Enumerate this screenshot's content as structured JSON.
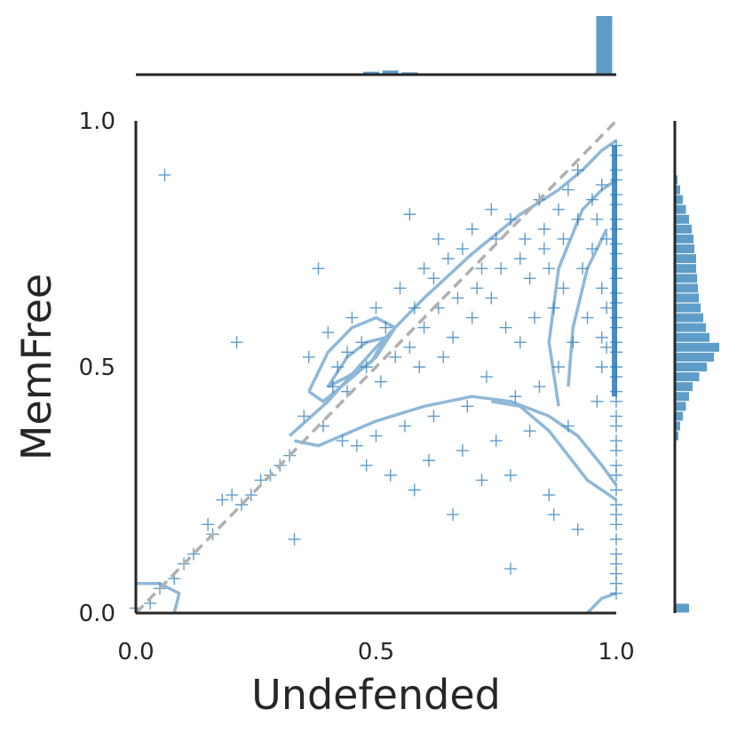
{
  "chart_data": {
    "type": "scatter",
    "subtype": "joint plot with marginal histograms and KDE contours",
    "title": "",
    "xlabel": "Undefended",
    "ylabel": "MemFree",
    "xlim": [
      0.0,
      1.0
    ],
    "ylim": [
      0.0,
      1.0
    ],
    "xticks": [
      0.0,
      0.5,
      1.0
    ],
    "xtick_labels": [
      "0.0",
      "0.5",
      "1.0"
    ],
    "yticks": [
      0.0,
      0.5,
      1.0
    ],
    "ytick_labels": [
      "0.0",
      "0.5",
      "1.0"
    ],
    "grid": false,
    "marker": "+",
    "color": "#2b7bba",
    "reference_line": {
      "style": "dashed",
      "color": "#b0b0b0",
      "from": [
        0,
        0
      ],
      "to": [
        1,
        1
      ]
    },
    "series": [
      {
        "name": "",
        "points": [
          [
            0.06,
            0.89
          ],
          [
            0.21,
            0.55
          ],
          [
            0.38,
            0.7
          ],
          [
            0.57,
            0.81
          ],
          [
            0.33,
            0.15
          ],
          [
            0.5,
            0.62
          ],
          [
            0.55,
            0.66
          ],
          [
            0.62,
            0.68
          ],
          [
            0.45,
            0.6
          ],
          [
            0.4,
            0.57
          ],
          [
            0.36,
            0.52
          ],
          [
            0.42,
            0.5
          ],
          [
            0.44,
            0.53
          ],
          [
            0.47,
            0.55
          ],
          [
            0.48,
            0.5
          ],
          [
            0.52,
            0.58
          ],
          [
            0.58,
            0.62
          ],
          [
            0.6,
            0.58
          ],
          [
            0.65,
            0.72
          ],
          [
            0.68,
            0.74
          ],
          [
            0.72,
            0.7
          ],
          [
            0.75,
            0.76
          ],
          [
            0.78,
            0.8
          ],
          [
            0.8,
            0.72
          ],
          [
            0.82,
            0.68
          ],
          [
            0.85,
            0.78
          ],
          [
            0.88,
            0.82
          ],
          [
            0.9,
            0.86
          ],
          [
            0.92,
            0.9
          ],
          [
            0.86,
            0.7
          ],
          [
            0.7,
            0.6
          ],
          [
            0.66,
            0.56
          ],
          [
            0.64,
            0.52
          ],
          [
            0.74,
            0.64
          ],
          [
            0.77,
            0.58
          ],
          [
            0.8,
            0.55
          ],
          [
            0.83,
            0.6
          ],
          [
            0.87,
            0.62
          ],
          [
            0.89,
            0.66
          ],
          [
            0.93,
            0.7
          ],
          [
            0.95,
            0.74
          ],
          [
            0.96,
            0.8
          ],
          [
            0.94,
            0.6
          ],
          [
            0.91,
            0.55
          ],
          [
            0.88,
            0.5
          ],
          [
            0.84,
            0.46
          ],
          [
            0.79,
            0.44
          ],
          [
            0.73,
            0.48
          ],
          [
            0.69,
            0.42
          ],
          [
            0.62,
            0.4
          ],
          [
            0.56,
            0.38
          ],
          [
            0.5,
            0.36
          ],
          [
            0.46,
            0.34
          ],
          [
            0.43,
            0.35
          ],
          [
            0.39,
            0.38
          ],
          [
            0.35,
            0.4
          ],
          [
            0.32,
            0.32
          ],
          [
            0.3,
            0.3
          ],
          [
            0.28,
            0.28
          ],
          [
            0.26,
            0.27
          ],
          [
            0.24,
            0.24
          ],
          [
            0.22,
            0.22
          ],
          [
            0.2,
            0.24
          ],
          [
            0.18,
            0.23
          ],
          [
            0.16,
            0.16
          ],
          [
            0.15,
            0.18
          ],
          [
            0.12,
            0.12
          ],
          [
            0.1,
            0.1
          ],
          [
            0.08,
            0.07
          ],
          [
            0.05,
            0.05
          ],
          [
            0.03,
            0.02
          ],
          [
            0.0,
            0.01
          ],
          [
            0.48,
            0.3
          ],
          [
            0.53,
            0.28
          ],
          [
            0.58,
            0.25
          ],
          [
            0.66,
            0.2
          ],
          [
            0.72,
            0.27
          ],
          [
            0.78,
            0.28
          ],
          [
            0.86,
            0.24
          ],
          [
            0.87,
            0.2
          ],
          [
            0.92,
            0.17
          ],
          [
            0.78,
            0.09
          ],
          [
            0.61,
            0.31
          ],
          [
            0.68,
            0.33
          ],
          [
            0.75,
            0.35
          ],
          [
            0.82,
            0.37
          ],
          [
            0.9,
            0.38
          ],
          [
            0.96,
            0.43
          ],
          [
            0.6,
            0.7
          ],
          [
            0.63,
            0.76
          ],
          [
            0.7,
            0.78
          ],
          [
            0.74,
            0.82
          ],
          [
            0.84,
            0.84
          ],
          [
            0.97,
            0.87
          ],
          [
            0.97,
            0.66
          ],
          [
            0.97,
            0.56
          ],
          [
            0.97,
            0.5
          ],
          [
            0.41,
            0.46
          ],
          [
            0.44,
            0.45
          ],
          [
            0.51,
            0.47
          ],
          [
            0.54,
            0.52
          ],
          [
            0.57,
            0.54
          ],
          [
            0.59,
            0.5
          ],
          [
            0.63,
            0.62
          ],
          [
            0.67,
            0.64
          ],
          [
            0.71,
            0.66
          ],
          [
            0.76,
            0.7
          ],
          [
            0.81,
            0.76
          ],
          [
            0.85,
            0.74
          ],
          [
            0.89,
            0.76
          ],
          [
            0.92,
            0.8
          ],
          [
            0.95,
            0.84
          ],
          [
            0.98,
            0.76
          ],
          [
            0.98,
            0.62
          ],
          [
            0.98,
            0.54
          ]
        ]
      }
    ],
    "edge_points": {
      "x": 1.0,
      "y_values": [
        0.95,
        0.93,
        0.9,
        0.88,
        0.85,
        0.83,
        0.8,
        0.78,
        0.75,
        0.73,
        0.7,
        0.68,
        0.65,
        0.63,
        0.6,
        0.58,
        0.55,
        0.53,
        0.5,
        0.48,
        0.45,
        0.43,
        0.4,
        0.38,
        0.35,
        0.33,
        0.3,
        0.28,
        0.25,
        0.22,
        0.2,
        0.18,
        0.15,
        0.12,
        0.1,
        0.08,
        0.06,
        0.04
      ]
    },
    "x_marginal_histogram": {
      "bin_centers": [
        0.49,
        0.53,
        0.57,
        0.61,
        0.65,
        0.69,
        0.73,
        0.77,
        0.81,
        0.85,
        0.89,
        0.93,
        0.975
      ],
      "relative_heights": [
        0.05,
        0.07,
        0.04,
        0.02,
        0.01,
        0.01,
        0.01,
        0.01,
        0.01,
        0.01,
        0.01,
        0.02,
        1.0
      ]
    },
    "y_marginal_histogram": {
      "bin_centers": [
        0.01,
        0.33,
        0.36,
        0.38,
        0.4,
        0.42,
        0.44,
        0.46,
        0.48,
        0.5,
        0.52,
        0.54,
        0.56,
        0.58,
        0.6,
        0.62,
        0.64,
        0.66,
        0.68,
        0.7,
        0.72,
        0.74,
        0.76,
        0.78,
        0.8,
        0.82,
        0.84,
        0.86,
        0.88
      ],
      "relative_heights": [
        0.32,
        0.03,
        0.08,
        0.12,
        0.18,
        0.25,
        0.32,
        0.4,
        0.55,
        0.72,
        0.88,
        1.0,
        0.78,
        0.7,
        0.64,
        0.58,
        0.54,
        0.52,
        0.5,
        0.48,
        0.48,
        0.44,
        0.42,
        0.38,
        0.32,
        0.25,
        0.18,
        0.12,
        0.06
      ]
    },
    "kde_contours": [
      [
        [
          0.32,
          0.36
        ],
        [
          0.4,
          0.43
        ],
        [
          0.5,
          0.54
        ],
        [
          0.6,
          0.64
        ],
        [
          0.7,
          0.73
        ],
        [
          0.8,
          0.81
        ],
        [
          0.88,
          0.86
        ],
        [
          0.93,
          0.9
        ],
        [
          0.97,
          0.94
        ],
        [
          1.0,
          0.96
        ]
      ],
      [
        [
          0.33,
          0.35
        ],
        [
          0.38,
          0.34
        ],
        [
          0.5,
          0.39
        ],
        [
          0.6,
          0.42
        ],
        [
          0.7,
          0.44
        ],
        [
          0.78,
          0.43
        ],
        [
          0.86,
          0.4
        ],
        [
          0.92,
          0.36
        ],
        [
          0.97,
          0.3
        ],
        [
          1.0,
          0.26
        ]
      ],
      [
        [
          0.36,
          0.45
        ],
        [
          0.4,
          0.53
        ],
        [
          0.45,
          0.58
        ],
        [
          0.5,
          0.6
        ],
        [
          0.54,
          0.58
        ],
        [
          0.5,
          0.52
        ],
        [
          0.44,
          0.47
        ],
        [
          0.39,
          0.43
        ],
        [
          0.36,
          0.45
        ]
      ],
      [
        [
          0.4,
          0.46
        ],
        [
          0.44,
          0.52
        ],
        [
          0.48,
          0.55
        ],
        [
          0.52,
          0.56
        ],
        [
          0.49,
          0.51
        ],
        [
          0.44,
          0.48
        ],
        [
          0.4,
          0.46
        ]
      ],
      [
        [
          0.74,
          0.43
        ],
        [
          0.8,
          0.42
        ],
        [
          0.86,
          0.37
        ],
        [
          0.9,
          0.32
        ],
        [
          0.94,
          0.27
        ],
        [
          1.0,
          0.23
        ]
      ],
      [
        [
          0.0,
          0.06
        ],
        [
          0.05,
          0.06
        ],
        [
          0.09,
          0.04
        ],
        [
          0.08,
          0.0
        ]
      ],
      [
        [
          0.94,
          0.0
        ],
        [
          0.97,
          0.03
        ],
        [
          1.0,
          0.04
        ]
      ],
      [
        [
          0.88,
          0.42
        ],
        [
          0.86,
          0.55
        ],
        [
          0.88,
          0.7
        ],
        [
          0.93,
          0.82
        ],
        [
          0.97,
          0.86
        ],
        [
          1.0,
          0.88
        ]
      ],
      [
        [
          0.9,
          0.46
        ],
        [
          0.91,
          0.58
        ],
        [
          0.94,
          0.7
        ],
        [
          0.98,
          0.78
        ]
      ]
    ]
  }
}
